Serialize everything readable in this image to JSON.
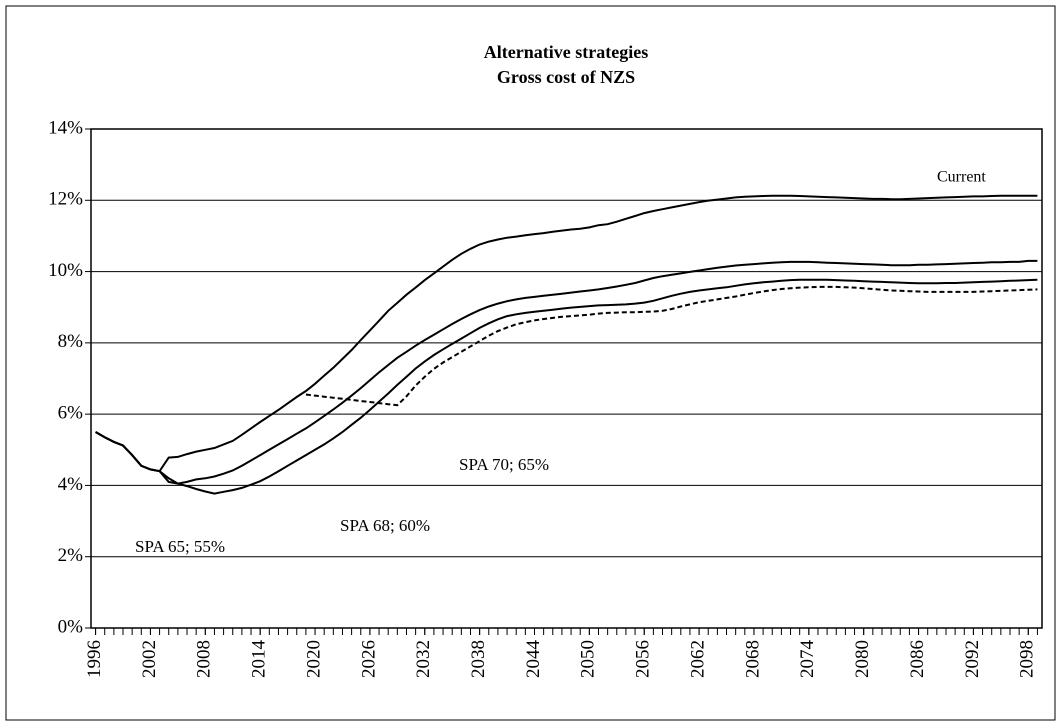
{
  "chart_data": {
    "type": "line",
    "title": "Alternative strategies",
    "subtitle": "Gross cost of NZS",
    "x": [
      1996,
      1997,
      1998,
      1999,
      2000,
      2001,
      2002,
      2003,
      2004,
      2005,
      2006,
      2007,
      2008,
      2009,
      2010,
      2011,
      2012,
      2013,
      2014,
      2015,
      2016,
      2017,
      2018,
      2019,
      2020,
      2021,
      2022,
      2023,
      2024,
      2025,
      2026,
      2027,
      2028,
      2029,
      2030,
      2031,
      2032,
      2033,
      2034,
      2035,
      2036,
      2037,
      2038,
      2039,
      2040,
      2041,
      2042,
      2043,
      2044,
      2045,
      2046,
      2047,
      2048,
      2049,
      2050,
      2051,
      2052,
      2053,
      2054,
      2055,
      2056,
      2057,
      2058,
      2059,
      2060,
      2061,
      2062,
      2063,
      2064,
      2065,
      2066,
      2067,
      2068,
      2069,
      2070,
      2071,
      2072,
      2073,
      2074,
      2075,
      2076,
      2077,
      2078,
      2079,
      2080,
      2081,
      2082,
      2083,
      2084,
      2085,
      2086,
      2087,
      2088,
      2089,
      2090,
      2091,
      2092,
      2093,
      2094,
      2095,
      2096,
      2097,
      2098,
      2099
    ],
    "xlim": [
      1995.5,
      2099.5
    ],
    "xticks": [
      1996,
      2002,
      2008,
      2014,
      2020,
      2026,
      2032,
      2038,
      2044,
      2050,
      2056,
      2062,
      2068,
      2074,
      2080,
      2086,
      2092,
      2098
    ],
    "ylim": [
      0,
      14
    ],
    "yticks": [
      {
        "value": 0,
        "label": "0%"
      },
      {
        "value": 2,
        "label": "2%"
      },
      {
        "value": 4,
        "label": "4%"
      },
      {
        "value": 6,
        "label": "6%"
      },
      {
        "value": 8,
        "label": "8%"
      },
      {
        "value": 10,
        "label": "10%"
      },
      {
        "value": 12,
        "label": "12%"
      },
      {
        "value": 14,
        "label": "14%"
      }
    ],
    "grid": true,
    "series": [
      {
        "name": "Current",
        "color": "#000000",
        "dash": false,
        "values": [
          5.5,
          5.35,
          5.22,
          5.12,
          4.85,
          4.55,
          4.45,
          4.4,
          4.78,
          4.8,
          4.88,
          4.95,
          5.0,
          5.05,
          5.15,
          5.25,
          5.42,
          5.6,
          5.78,
          5.95,
          6.12,
          6.3,
          6.48,
          6.65,
          6.85,
          7.08,
          7.3,
          7.55,
          7.8,
          8.08,
          8.35,
          8.62,
          8.9,
          9.12,
          9.35,
          9.55,
          9.76,
          9.95,
          10.14,
          10.33,
          10.5,
          10.64,
          10.76,
          10.84,
          10.9,
          10.95,
          10.98,
          11.02,
          11.05,
          11.08,
          11.12,
          11.15,
          11.18,
          11.2,
          11.24,
          11.3,
          11.33,
          11.4,
          11.48,
          11.56,
          11.64,
          11.7,
          11.75,
          11.8,
          11.85,
          11.9,
          11.95,
          11.99,
          12.02,
          12.05,
          12.08,
          12.1,
          12.11,
          12.12,
          12.13,
          12.13,
          12.13,
          12.12,
          12.11,
          12.1,
          12.09,
          12.08,
          12.07,
          12.06,
          12.05,
          12.04,
          12.04,
          12.03,
          12.03,
          12.04,
          12.05,
          12.06,
          12.07,
          12.08,
          12.09,
          12.1,
          12.11,
          12.11,
          12.12,
          12.13,
          12.13,
          12.13,
          12.13,
          12.13
        ]
      },
      {
        "name": "SPA 65; 55%",
        "color": "#000000",
        "dash": false,
        "values": [
          5.5,
          5.35,
          5.22,
          5.12,
          4.85,
          4.55,
          4.45,
          4.4,
          4.1,
          4.05,
          4.1,
          4.17,
          4.2,
          4.25,
          4.33,
          4.42,
          4.55,
          4.7,
          4.85,
          5.0,
          5.15,
          5.3,
          5.45,
          5.6,
          5.77,
          5.95,
          6.13,
          6.32,
          6.52,
          6.73,
          6.95,
          7.17,
          7.38,
          7.58,
          7.75,
          7.92,
          8.08,
          8.23,
          8.38,
          8.53,
          8.67,
          8.8,
          8.92,
          9.02,
          9.1,
          9.17,
          9.22,
          9.26,
          9.29,
          9.32,
          9.35,
          9.38,
          9.41,
          9.44,
          9.47,
          9.5,
          9.54,
          9.58,
          9.63,
          9.68,
          9.75,
          9.82,
          9.87,
          9.91,
          9.95,
          9.99,
          10.03,
          10.07,
          10.11,
          10.14,
          10.17,
          10.19,
          10.21,
          10.23,
          10.25,
          10.26,
          10.27,
          10.27,
          10.27,
          10.26,
          10.25,
          10.24,
          10.23,
          10.22,
          10.21,
          10.2,
          10.19,
          10.18,
          10.18,
          10.18,
          10.19,
          10.19,
          10.2,
          10.21,
          10.22,
          10.23,
          10.24,
          10.25,
          10.26,
          10.26,
          10.27,
          10.27,
          10.3,
          10.3
        ]
      },
      {
        "name": "SPA 68; 60%",
        "color": "#000000",
        "dash": false,
        "values": [
          5.5,
          5.35,
          5.22,
          5.12,
          4.85,
          4.55,
          4.45,
          4.4,
          4.2,
          4.05,
          3.98,
          3.9,
          3.83,
          3.77,
          3.82,
          3.87,
          3.93,
          4.02,
          4.12,
          4.25,
          4.4,
          4.55,
          4.7,
          4.85,
          5.0,
          5.15,
          5.32,
          5.5,
          5.7,
          5.9,
          6.12,
          6.35,
          6.58,
          6.82,
          7.05,
          7.28,
          7.48,
          7.66,
          7.82,
          7.97,
          8.12,
          8.27,
          8.42,
          8.55,
          8.66,
          8.75,
          8.8,
          8.84,
          8.87,
          8.9,
          8.93,
          8.96,
          8.99,
          9.01,
          9.03,
          9.05,
          9.06,
          9.07,
          9.08,
          9.1,
          9.13,
          9.18,
          9.25,
          9.32,
          9.38,
          9.43,
          9.47,
          9.5,
          9.53,
          9.56,
          9.6,
          9.64,
          9.67,
          9.7,
          9.72,
          9.74,
          9.76,
          9.77,
          9.77,
          9.77,
          9.77,
          9.76,
          9.75,
          9.74,
          9.73,
          9.72,
          9.71,
          9.7,
          9.69,
          9.68,
          9.67,
          9.67,
          9.67,
          9.68,
          9.68,
          9.69,
          9.7,
          9.71,
          9.72,
          9.73,
          9.74,
          9.75,
          9.76,
          9.77
        ]
      },
      {
        "name": "SPA 70; 65%",
        "color": "#000000",
        "dash": true,
        "values": [
          null,
          null,
          null,
          null,
          null,
          null,
          null,
          null,
          null,
          null,
          null,
          null,
          null,
          null,
          null,
          null,
          null,
          null,
          null,
          null,
          null,
          null,
          null,
          6.55,
          6.52,
          6.49,
          6.46,
          6.43,
          6.4,
          6.37,
          6.34,
          6.31,
          6.28,
          6.25,
          6.5,
          6.8,
          7.05,
          7.27,
          7.45,
          7.6,
          7.75,
          7.9,
          8.05,
          8.2,
          8.33,
          8.43,
          8.52,
          8.58,
          8.63,
          8.67,
          8.7,
          8.73,
          8.75,
          8.77,
          8.79,
          8.82,
          8.84,
          8.85,
          8.86,
          8.86,
          8.87,
          8.88,
          8.9,
          8.95,
          9.02,
          9.08,
          9.14,
          9.18,
          9.22,
          9.26,
          9.3,
          9.35,
          9.4,
          9.44,
          9.48,
          9.51,
          9.53,
          9.55,
          9.56,
          9.57,
          9.57,
          9.57,
          9.56,
          9.55,
          9.53,
          9.51,
          9.49,
          9.47,
          9.46,
          9.45,
          9.44,
          9.43,
          9.43,
          9.43,
          9.43,
          9.43,
          9.43,
          9.44,
          9.45,
          9.46,
          9.47,
          9.48,
          9.49,
          9.5
        ]
      }
    ]
  }
}
